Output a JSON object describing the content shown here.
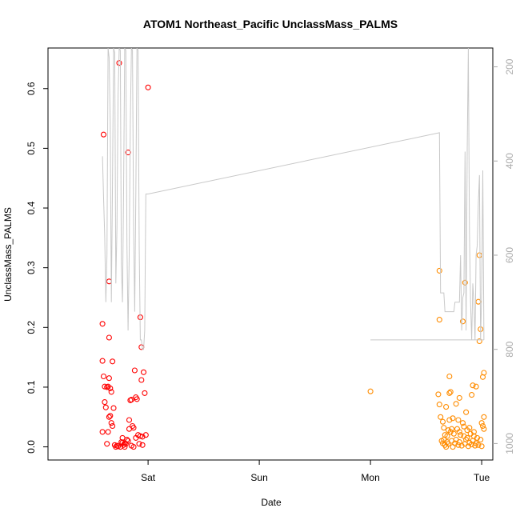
{
  "chart_data": {
    "type": "scatter",
    "title": "ATOM1 Northeast_Pacific UnclassMass_PALMS",
    "xlabel": "Date",
    "ylabel": "UnclassMass_PALMS",
    "x_axis": {
      "type": "time-days",
      "range": [
        -0.9,
        3.1
      ],
      "ticks": [
        {
          "value": 0,
          "label": "Sat"
        },
        {
          "value": 1,
          "label": "Sun"
        },
        {
          "value": 2,
          "label": "Mon"
        },
        {
          "value": 3,
          "label": "Tue"
        }
      ]
    },
    "y_axis": {
      "range": [
        -0.022,
        0.668
      ],
      "ticks": [
        0.0,
        0.1,
        0.2,
        0.3,
        0.4,
        0.5,
        0.6
      ],
      "tick_labels": [
        "0.0",
        "0.1",
        "0.2",
        "0.3",
        "0.4",
        "0.5",
        "0.6"
      ]
    },
    "y2_axis": {
      "description": "secondary axis (reversed), grey line",
      "range": [
        1035,
        160
      ],
      "ticks": [
        200,
        400,
        600,
        800,
        1000
      ],
      "tick_labels": [
        "200",
        "400",
        "600",
        "800",
        "1000"
      ],
      "color": "#aaaaaa"
    },
    "grid": false,
    "series": [
      {
        "color": "#ff0000",
        "marker": "open-circle",
        "points": [
          [
            -0.4,
            0.523
          ],
          [
            -0.35,
            0.277
          ],
          [
            -0.26,
            0.643
          ],
          [
            -0.18,
            0.493
          ],
          [
            -0.07,
            0.217
          ],
          [
            -0.06,
            0.167
          ],
          [
            0.0,
            0.602
          ],
          [
            -0.41,
            0.206
          ],
          [
            -0.41,
            0.144
          ],
          [
            -0.4,
            0.118
          ],
          [
            -0.39,
            0.101
          ],
          [
            -0.37,
            0.1
          ],
          [
            -0.36,
            0.101
          ],
          [
            -0.35,
            0.183
          ],
          [
            -0.35,
            0.115
          ],
          [
            -0.34,
            0.098
          ],
          [
            -0.33,
            0.092
          ],
          [
            -0.32,
            0.143
          ],
          [
            -0.39,
            0.075
          ],
          [
            -0.38,
            0.066
          ],
          [
            -0.31,
            0.065
          ],
          [
            -0.34,
            0.052
          ],
          [
            -0.35,
            0.05
          ],
          [
            -0.33,
            0.04
          ],
          [
            -0.32,
            0.035
          ],
          [
            -0.41,
            0.025
          ],
          [
            -0.36,
            0.025
          ],
          [
            -0.37,
            0.005
          ],
          [
            -0.3,
            0.003
          ],
          [
            -0.29,
            0.0
          ],
          [
            -0.28,
            0.002
          ],
          [
            -0.27,
            0.001
          ],
          [
            -0.25,
            0.0
          ],
          [
            -0.24,
            0.008
          ],
          [
            -0.23,
            0.015
          ],
          [
            -0.22,
            0.003
          ],
          [
            -0.21,
            0.0
          ],
          [
            -0.2,
            0.005
          ],
          [
            -0.19,
            0.012
          ],
          [
            -0.18,
            0.01
          ],
          [
            -0.17,
            0.045
          ],
          [
            -0.16,
            0.078
          ],
          [
            -0.15,
            0.079
          ],
          [
            -0.14,
            0.035
          ],
          [
            -0.13,
            0.032
          ],
          [
            -0.12,
            0.128
          ],
          [
            -0.11,
            0.083
          ],
          [
            -0.1,
            0.08
          ],
          [
            -0.09,
            0.02
          ],
          [
            -0.08,
            0.005
          ],
          [
            -0.07,
            0.018
          ],
          [
            -0.06,
            0.112
          ],
          [
            -0.05,
            0.017
          ],
          [
            -0.04,
            0.125
          ],
          [
            -0.03,
            0.09
          ],
          [
            -0.02,
            0.02
          ],
          [
            -0.05,
            0.003
          ],
          [
            -0.13,
            0.0
          ],
          [
            -0.15,
            0.002
          ],
          [
            -0.11,
            0.015
          ],
          [
            -0.17,
            0.03
          ],
          [
            -0.21,
            0.006
          ],
          [
            -0.23,
            0.007
          ]
        ]
      },
      {
        "color": "#ff8c00",
        "marker": "open-circle",
        "points": [
          [
            2.0,
            0.093
          ],
          [
            2.62,
            0.295
          ],
          [
            2.62,
            0.213
          ],
          [
            2.83,
            0.21
          ],
          [
            2.85,
            0.275
          ],
          [
            2.97,
            0.243
          ],
          [
            2.98,
            0.321
          ],
          [
            2.98,
            0.177
          ],
          [
            2.99,
            0.197
          ],
          [
            3.01,
            0.117
          ],
          [
            3.02,
            0.124
          ],
          [
            2.71,
            0.118
          ],
          [
            2.92,
            0.103
          ],
          [
            2.95,
            0.101
          ],
          [
            2.61,
            0.088
          ],
          [
            2.71,
            0.09
          ],
          [
            2.72,
            0.092
          ],
          [
            2.8,
            0.082
          ],
          [
            2.91,
            0.087
          ],
          [
            2.62,
            0.071
          ],
          [
            2.68,
            0.067
          ],
          [
            2.77,
            0.072
          ],
          [
            2.86,
            0.058
          ],
          [
            3.02,
            0.05
          ],
          [
            2.63,
            0.05
          ],
          [
            2.74,
            0.048
          ],
          [
            2.71,
            0.045
          ],
          [
            2.65,
            0.042
          ],
          [
            2.79,
            0.045
          ],
          [
            2.83,
            0.04
          ],
          [
            2.89,
            0.032
          ],
          [
            2.66,
            0.032
          ],
          [
            2.7,
            0.028
          ],
          [
            2.72,
            0.025
          ],
          [
            2.75,
            0.022
          ],
          [
            2.78,
            0.03
          ],
          [
            2.81,
            0.02
          ],
          [
            2.84,
            0.018
          ],
          [
            2.87,
            0.015
          ],
          [
            2.9,
            0.022
          ],
          [
            2.93,
            0.018
          ],
          [
            2.96,
            0.015
          ],
          [
            3.0,
            0.04
          ],
          [
            3.01,
            0.035
          ],
          [
            2.64,
            0.01
          ],
          [
            2.65,
            0.006
          ],
          [
            2.66,
            0.012
          ],
          [
            2.67,
            0.003
          ],
          [
            2.68,
            0.0
          ],
          [
            2.69,
            0.008
          ],
          [
            2.7,
            0.005
          ],
          [
            2.73,
            0.01
          ],
          [
            2.74,
            0.0
          ],
          [
            2.76,
            0.006
          ],
          [
            2.77,
            0.012
          ],
          [
            2.79,
            0.003
          ],
          [
            2.8,
            0.008
          ],
          [
            2.82,
            0.002
          ],
          [
            2.85,
            0.005
          ],
          [
            2.86,
            0.012
          ],
          [
            2.88,
            0.001
          ],
          [
            2.89,
            0.007
          ],
          [
            2.91,
            0.004
          ],
          [
            2.92,
            0.01
          ],
          [
            2.94,
            0.002
          ],
          [
            2.95,
            0.006
          ],
          [
            2.97,
            0.003
          ],
          [
            2.99,
            0.012
          ],
          [
            3.0,
            0.001
          ],
          [
            3.02,
            0.03
          ],
          [
            2.67,
            0.02
          ],
          [
            2.69,
            0.018
          ],
          [
            2.73,
            0.03
          ],
          [
            2.8,
            0.025
          ],
          [
            2.84,
            0.034
          ],
          [
            2.87,
            0.028
          ],
          [
            2.93,
            0.025
          ]
        ]
      },
      {
        "color": "#c8c8c8",
        "axis": "y2",
        "line": true,
        "points": [
          [
            -0.41,
            390
          ],
          [
            -0.4,
            480
          ],
          [
            -0.39,
            560
          ],
          [
            -0.38,
            700
          ],
          [
            -0.37,
            600
          ],
          [
            -0.36,
            160
          ],
          [
            -0.35,
            180
          ],
          [
            -0.34,
            320
          ],
          [
            -0.33,
            700
          ],
          [
            -0.32,
            450
          ],
          [
            -0.31,
            160
          ],
          [
            -0.3,
            170
          ],
          [
            -0.29,
            660
          ],
          [
            -0.28,
            540
          ],
          [
            -0.27,
            260
          ],
          [
            -0.26,
            160
          ],
          [
            -0.25,
            165
          ],
          [
            -0.24,
            620
          ],
          [
            -0.23,
            700
          ],
          [
            -0.22,
            460
          ],
          [
            -0.21,
            160
          ],
          [
            -0.2,
            165
          ],
          [
            -0.19,
            580
          ],
          [
            -0.18,
            760
          ],
          [
            -0.17,
            600
          ],
          [
            -0.16,
            320
          ],
          [
            -0.15,
            160
          ],
          [
            -0.14,
            165
          ],
          [
            -0.13,
            540
          ],
          [
            -0.12,
            720
          ],
          [
            -0.11,
            470
          ],
          [
            -0.1,
            160
          ],
          [
            -0.09,
            165
          ],
          [
            -0.08,
            580
          ],
          [
            -0.07,
            780
          ],
          [
            -0.06,
            780
          ],
          [
            -0.05,
            800
          ],
          [
            -0.04,
            800
          ],
          [
            -0.03,
            760
          ],
          [
            -0.02,
            470
          ],
          [
            0.0,
            470
          ],
          [
            2.62,
            340
          ],
          [
            2.63,
            680
          ],
          [
            2.66,
            680
          ],
          [
            2.67,
            720
          ],
          [
            2.75,
            720
          ],
          [
            2.76,
            700
          ],
          [
            2.8,
            700
          ],
          [
            2.81,
            600
          ],
          [
            2.82,
            760
          ],
          [
            2.83,
            690
          ],
          [
            2.84,
            680
          ],
          [
            2.85,
            380
          ],
          [
            2.86,
            760
          ],
          [
            2.87,
            380
          ],
          [
            2.88,
            160
          ],
          [
            2.89,
            550
          ],
          [
            2.9,
            700
          ],
          [
            2.91,
            780
          ],
          [
            2.92,
            660
          ],
          [
            2.93,
            700
          ],
          [
            2.94,
            780
          ],
          [
            2.95,
            600
          ],
          [
            2.96,
            580
          ],
          [
            2.97,
            490
          ],
          [
            2.98,
            430
          ],
          [
            2.99,
            780
          ],
          [
            3.0,
            680
          ],
          [
            3.01,
            420
          ],
          [
            3.02,
            780
          ]
        ]
      },
      {
        "color": "#c8c8c8",
        "axis": "y2",
        "line": true,
        "points": [
          [
            2.0,
            780
          ],
          [
            3.02,
            780
          ]
        ]
      }
    ]
  }
}
